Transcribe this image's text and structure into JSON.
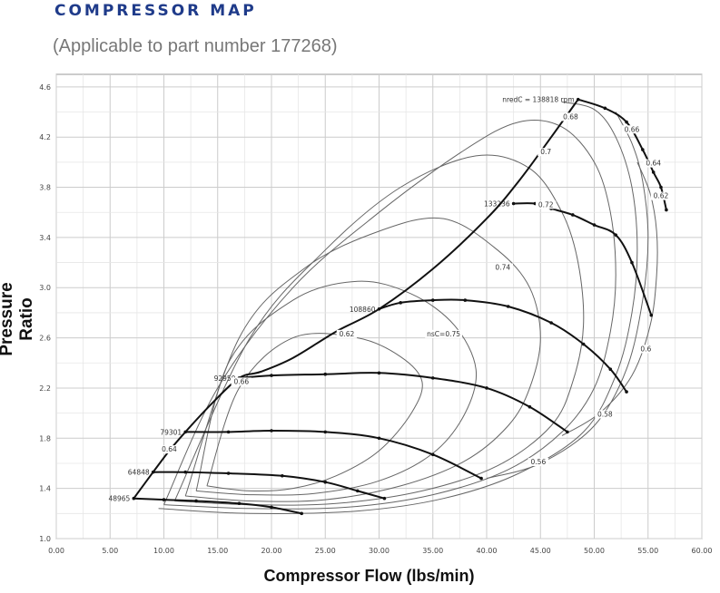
{
  "header": {
    "title": "COMPRESSOR MAP",
    "subtitle": "(Applicable to part number 177268)"
  },
  "colors": {
    "title": "#1f3b8a",
    "line": "#111111",
    "grid": "#cccccc"
  },
  "chart_data": {
    "type": "line",
    "xlabel": "Compressor Flow (lbs/min)",
    "ylabel": "Pressure Ratio",
    "xlim": [
      0,
      60
    ],
    "ylim": [
      1.0,
      4.7
    ],
    "x_ticks": [
      "0.00",
      "5.00",
      "10.00",
      "15.00",
      "20.00",
      "25.00",
      "30.00",
      "35.00",
      "40.00",
      "45.00",
      "50.00",
      "55.00",
      "60.00"
    ],
    "y_ticks": [
      "1.0",
      "1.4",
      "1.8",
      "2.2",
      "2.6",
      "3.0",
      "3.4",
      "3.8",
      "4.2",
      "4.6"
    ],
    "grid": true,
    "surge_line": {
      "x": [
        7.2,
        9.0,
        10.5,
        12.0,
        14.5,
        17.0,
        19.0,
        22.0,
        26.0,
        30.0,
        35.0,
        40.0,
        43.0,
        46.0,
        48.5
      ],
      "y": [
        1.32,
        1.53,
        1.7,
        1.85,
        2.08,
        2.28,
        2.33,
        2.44,
        2.65,
        2.83,
        3.15,
        3.55,
        3.85,
        4.2,
        4.5
      ]
    },
    "speed_lines": [
      {
        "label": "48965",
        "x": [
          7.2,
          10.0,
          13.0,
          17.0,
          20.0,
          22.8
        ],
        "y": [
          1.32,
          1.31,
          1.3,
          1.28,
          1.25,
          1.2
        ]
      },
      {
        "label": "64848",
        "x": [
          9.0,
          12.0,
          16.0,
          21.0,
          25.0,
          28.0,
          30.5
        ],
        "y": [
          1.53,
          1.53,
          1.52,
          1.5,
          1.45,
          1.38,
          1.32
        ]
      },
      {
        "label": "79301",
        "x": [
          12.0,
          16.0,
          20.0,
          25.0,
          30.0,
          35.0,
          39.5
        ],
        "y": [
          1.85,
          1.85,
          1.86,
          1.85,
          1.8,
          1.67,
          1.48
        ]
      },
      {
        "label": "92950",
        "x": [
          17.0,
          20.0,
          25.0,
          30.0,
          35.0,
          40.0,
          44.0,
          47.5
        ],
        "y": [
          2.28,
          2.3,
          2.31,
          2.32,
          2.28,
          2.2,
          2.05,
          1.85
        ]
      },
      {
        "label": "108860",
        "x": [
          30.0,
          32.0,
          35.0,
          38.0,
          42.0,
          46.0,
          49.0,
          51.5,
          53.0
        ],
        "y": [
          2.83,
          2.88,
          2.9,
          2.9,
          2.85,
          2.72,
          2.55,
          2.35,
          2.17
        ]
      },
      {
        "label": "133236",
        "x": [
          42.5,
          44.5,
          46.0,
          48.0,
          50.0,
          52.0,
          53.5,
          55.3
        ],
        "y": [
          3.67,
          3.67,
          3.63,
          3.58,
          3.5,
          3.42,
          3.2,
          2.78
        ]
      },
      {
        "label": "nredC = 138818 rpm",
        "x": [
          48.5,
          51.0,
          53.0,
          54.5,
          55.5,
          56.2,
          56.7
        ],
        "y": [
          4.5,
          4.43,
          4.32,
          4.1,
          3.92,
          3.8,
          3.62
        ]
      }
    ],
    "efficiency_islands": [
      {
        "label": "nsC=0.75",
        "x": [
          14,
          18,
          22,
          26,
          30,
          33,
          34,
          32,
          28,
          22,
          17,
          14
        ],
        "y": [
          1.42,
          1.38,
          1.4,
          1.5,
          1.7,
          2.0,
          2.25,
          2.45,
          2.6,
          2.6,
          2.2,
          1.42
        ]
      },
      {
        "label": "0.74",
        "x": [
          13,
          18,
          24,
          30,
          35,
          38,
          39,
          37,
          33,
          28,
          22,
          16,
          13
        ],
        "y": [
          1.38,
          1.35,
          1.36,
          1.46,
          1.68,
          2.0,
          2.35,
          2.7,
          2.95,
          3.05,
          2.9,
          2.4,
          1.38
        ]
      },
      {
        "label": "0.72",
        "x": [
          12,
          18,
          25,
          32,
          38,
          42,
          44,
          45,
          44,
          41,
          36,
          30,
          23,
          17,
          12
        ],
        "y": [
          1.34,
          1.3,
          1.31,
          1.42,
          1.62,
          1.9,
          2.2,
          2.6,
          3.0,
          3.3,
          3.55,
          3.45,
          3.15,
          2.6,
          1.34
        ]
      },
      {
        "label": "0.7",
        "x": [
          11,
          18,
          26,
          34,
          41,
          46,
          48,
          49,
          48.5,
          47,
          44,
          39,
          32,
          25,
          18,
          11
        ],
        "y": [
          1.3,
          1.27,
          1.28,
          1.38,
          1.58,
          1.9,
          2.25,
          2.7,
          3.2,
          3.6,
          3.95,
          4.05,
          3.8,
          3.3,
          2.6,
          1.3
        ]
      },
      {
        "label": "0.68",
        "x": [
          10,
          18,
          27,
          35,
          42,
          47,
          50,
          51.5,
          52,
          51.5,
          50,
          47,
          43,
          38,
          30,
          22,
          15,
          10
        ],
        "y": [
          1.27,
          1.24,
          1.25,
          1.35,
          1.55,
          1.85,
          2.2,
          2.65,
          3.1,
          3.6,
          4.0,
          4.28,
          4.32,
          4.1,
          3.6,
          3.0,
          2.2,
          1.27
        ]
      },
      {
        "label": "0.66",
        "x": [
          9.5,
          18,
          28,
          36,
          43,
          49,
          52,
          53.5,
          54,
          53.5,
          52,
          50,
          47
        ],
        "y": [
          1.24,
          1.2,
          1.22,
          1.32,
          1.52,
          1.85,
          2.3,
          2.8,
          3.3,
          3.8,
          4.2,
          4.42,
          4.48
        ]
      },
      {
        "label": "0.64",
        "x": [
          40,
          45,
          50,
          53,
          54.5,
          55,
          54.5,
          53.5,
          52
        ],
        "y": [
          1.48,
          1.6,
          1.9,
          2.35,
          2.9,
          3.4,
          3.85,
          4.15,
          4.4
        ]
      },
      {
        "label": "0.62",
        "x": [
          47,
          50.5,
          53.5,
          55.2,
          55.8,
          55.8,
          55.2,
          54
        ],
        "y": [
          1.82,
          2.0,
          2.3,
          2.7,
          3.1,
          3.45,
          3.75,
          4.0
        ]
      }
    ],
    "extra_labels": [
      {
        "text": "0.56",
        "x": 44.8,
        "y": 1.6
      },
      {
        "text": "0.58",
        "x": 51.0,
        "y": 1.98
      },
      {
        "text": "0.6",
        "x": 54.8,
        "y": 2.5
      },
      {
        "text": "0.62",
        "x": 56.2,
        "y": 3.72
      },
      {
        "text": "0.64",
        "x": 55.5,
        "y": 3.98
      },
      {
        "text": "0.66",
        "x": 53.5,
        "y": 4.25
      },
      {
        "text": "0.68",
        "x": 47.8,
        "y": 4.35
      },
      {
        "text": "0.7",
        "x": 45.5,
        "y": 4.07
      },
      {
        "text": "0.72",
        "x": 45.5,
        "y": 3.65
      },
      {
        "text": "0.74",
        "x": 41.5,
        "y": 3.15
      },
      {
        "text": "nsC=0.75",
        "x": 36.0,
        "y": 2.62
      },
      {
        "text": "0.62",
        "x": 27.0,
        "y": 2.62
      },
      {
        "text": "0.66",
        "x": 17.2,
        "y": 2.24
      },
      {
        "text": "0.64",
        "x": 10.5,
        "y": 1.7
      }
    ]
  }
}
